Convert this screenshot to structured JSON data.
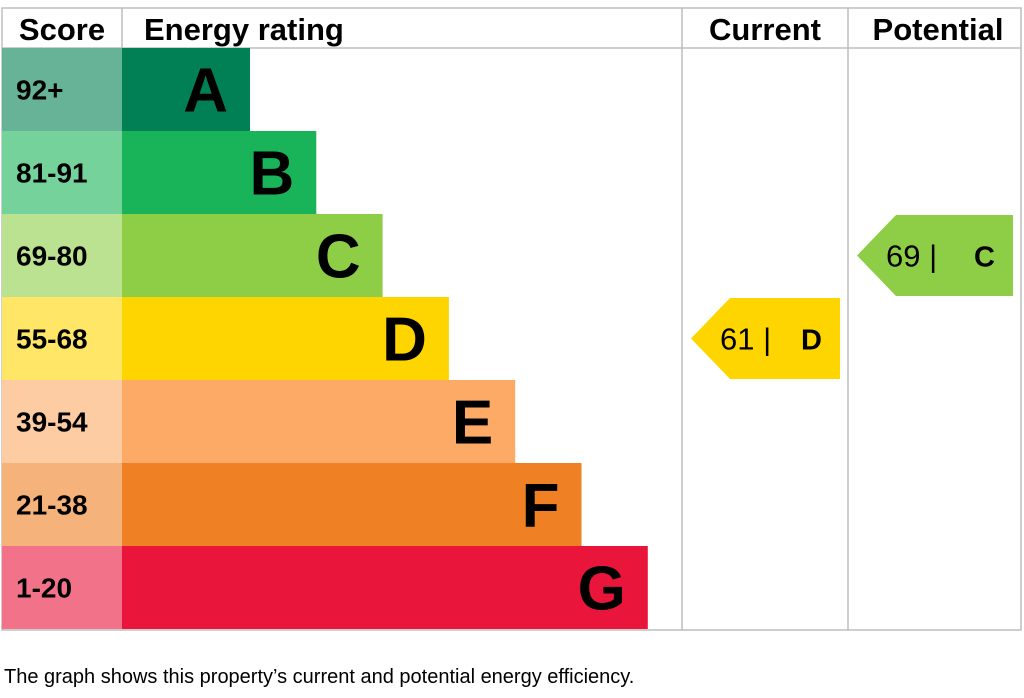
{
  "headers": {
    "score": "Score",
    "rating": "Energy rating",
    "current": "Current",
    "potential": "Potential"
  },
  "caption": "The graph shows this property’s current and potential energy efficiency.",
  "chart_data": {
    "type": "bar",
    "bands": [
      {
        "letter": "A",
        "range": "92+",
        "color": "#008054",
        "score_bg": "#66b398"
      },
      {
        "letter": "B",
        "range": "81-91",
        "color": "#19b459",
        "score_bg": "#75d29b"
      },
      {
        "letter": "C",
        "range": "69-80",
        "color": "#8dce46",
        "score_bg": "#bbe290"
      },
      {
        "letter": "D",
        "range": "55-68",
        "color": "#ffd500",
        "score_bg": "#ffe666"
      },
      {
        "letter": "E",
        "range": "39-54",
        "color": "#fcaa65",
        "score_bg": "#fdcca3"
      },
      {
        "letter": "F",
        "range": "21-38",
        "color": "#ef8023",
        "score_bg": "#f5b37b"
      },
      {
        "letter": "G",
        "range": "1-20",
        "color": "#e9153b",
        "score_bg": "#f27389"
      }
    ],
    "current": {
      "score": 61,
      "letter": "D",
      "label": "61 |",
      "color": "#ffd500"
    },
    "potential": {
      "score": 69,
      "letter": "C",
      "label": "69 |",
      "color": "#8dce46"
    }
  }
}
